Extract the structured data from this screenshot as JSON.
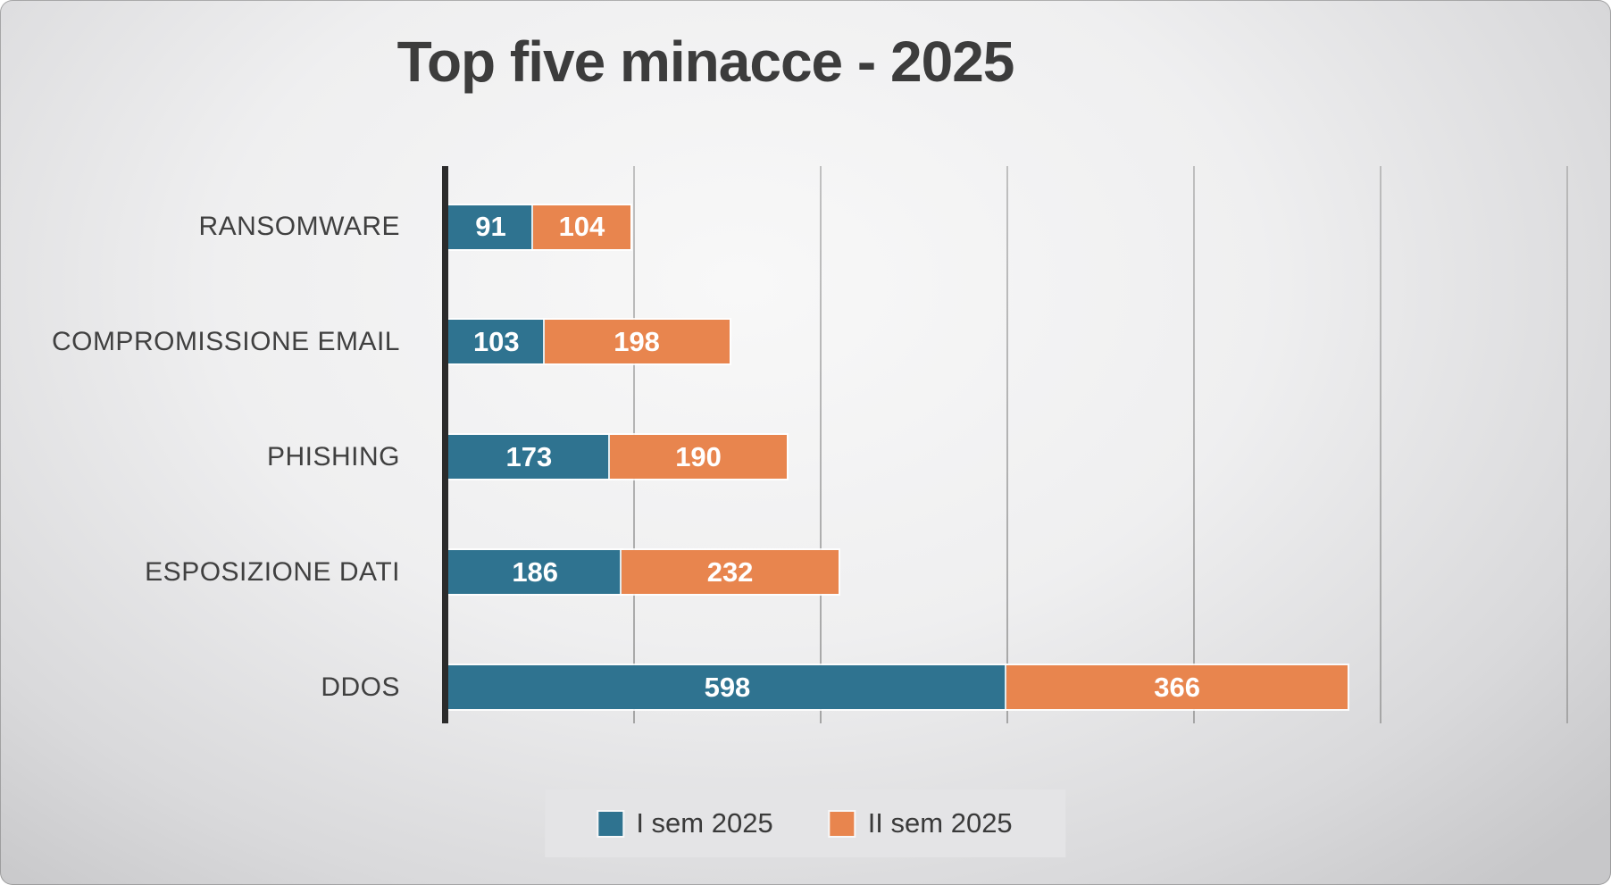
{
  "page": {
    "title": "Top five minacce - 2025"
  },
  "chart_data": {
    "type": "bar",
    "orientation": "horizontal",
    "stacked": true,
    "title": "Top five minacce - 2025",
    "categories": [
      "RANSOMWARE",
      "COMPROMISSIONE EMAIL",
      "PHISHING",
      "ESPOSIZIONE DATI",
      "DDOS"
    ],
    "series": [
      {
        "name": "I sem 2025",
        "color": "#2f7390",
        "values": [
          91,
          103,
          173,
          186,
          598
        ]
      },
      {
        "name": "II sem 2025",
        "color": "#e8854e",
        "values": [
          104,
          198,
          190,
          232,
          366
        ]
      }
    ],
    "stack_totals": [
      195,
      301,
      363,
      418,
      964
    ],
    "xlim": [
      0,
      1200
    ],
    "gridline_interval": 200,
    "x_tick_labels_visible": false,
    "grid": true,
    "legend_position": "bottom",
    "value_labels": "inside-center",
    "colors": {
      "axis": "#2b2b2b",
      "gridline": "#a6a6a6",
      "category_text": "#404040",
      "value_text": "#ffffff",
      "title_text": "#3c3c3c",
      "legend_background": "#e4e4e6"
    }
  }
}
